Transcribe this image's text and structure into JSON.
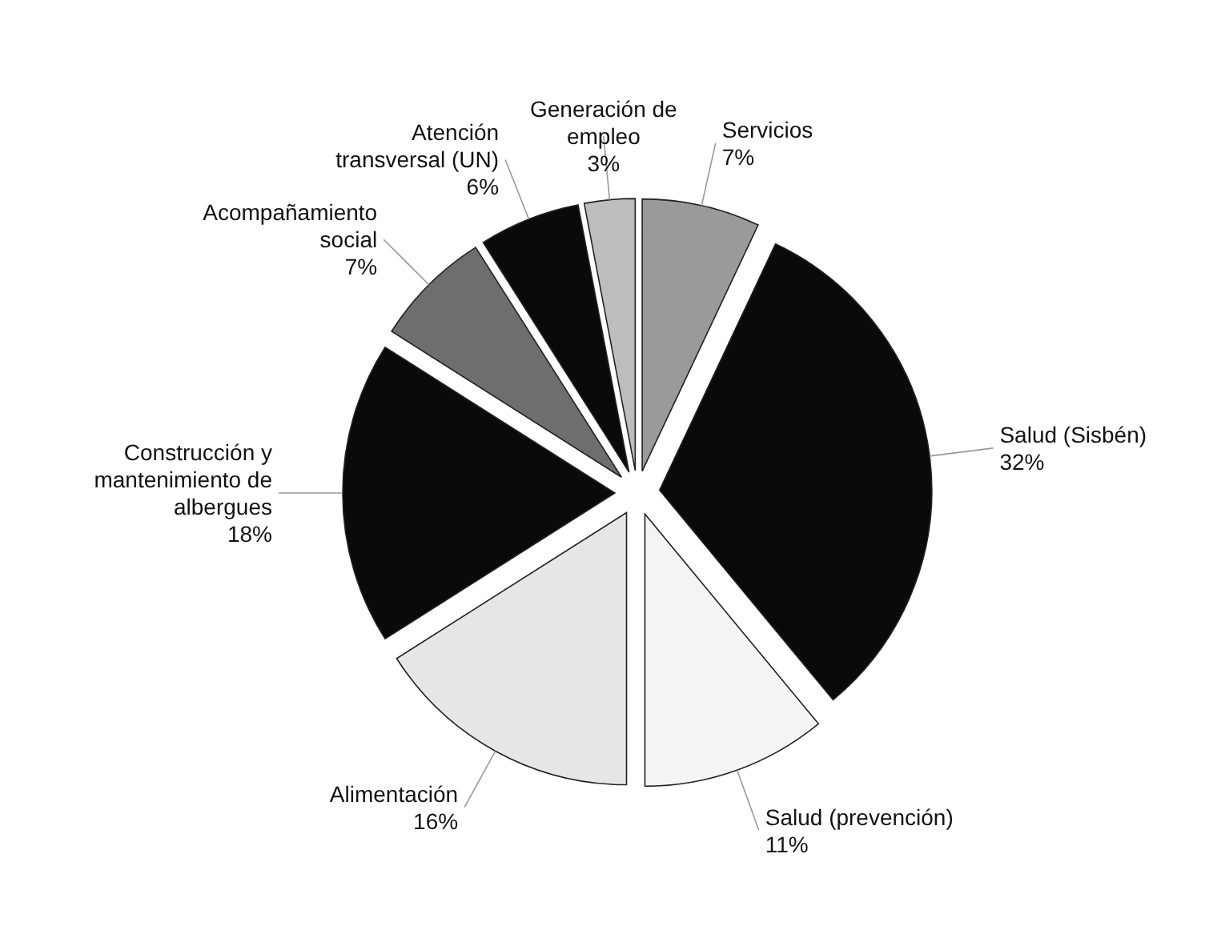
{
  "chart_data": {
    "type": "pie",
    "categories": [
      "Servicios",
      "Salud (Sisbén)",
      "Salud (prevención)",
      "Alimentación",
      "Construcción y mantenimiento de albergues",
      "Acompañamiento social",
      "Atención transversal (UN)",
      "Generación de empleo"
    ],
    "values": [
      7,
      32,
      11,
      16,
      18,
      7,
      6,
      3
    ],
    "colors": [
      "#9a9a9a",
      "#0a0a0a",
      "#f4f4f4",
      "#e6e6e6",
      "#0a0a0a",
      "#6e6e6e",
      "#0a0a0a",
      "#bdbdbd"
    ],
    "value_labels": [
      "7%",
      "32%",
      "11%",
      "16%",
      "18%",
      "7%",
      "6%",
      "3%"
    ]
  }
}
